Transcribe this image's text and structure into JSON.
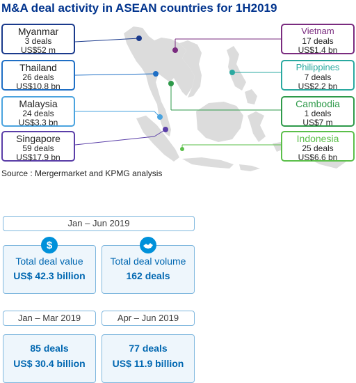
{
  "title": "M&A deal activity in ASEAN countries for 1H2019",
  "source": "Source : Mergermarket and KPMG analysis",
  "countries": [
    {
      "name": "Myanmar",
      "deals": "3 deals",
      "value": "US$52 m",
      "color": "#1a3a8c"
    },
    {
      "name": "Thailand",
      "deals": "26 deals",
      "value": "US$10.8 bn",
      "color": "#1f6fc5"
    },
    {
      "name": "Malaysia",
      "deals": "24 deals",
      "value": "US$3.3 bn",
      "color": "#4aa3df"
    },
    {
      "name": "Singapore",
      "deals": "59 deals",
      "value": "US$17.9 bn",
      "color": "#5a3ea8"
    },
    {
      "name": "Vietnam",
      "deals": "17 deals",
      "value": "US$1.4 bn",
      "color": "#7a2b7f"
    },
    {
      "name": "Philippines",
      "deals": "7 deals",
      "value": "US$2.2 bn",
      "color": "#2aa9a0"
    },
    {
      "name": "Cambodia",
      "deals": "1 deals",
      "value": "US$7 m",
      "color": "#2e9a4a"
    },
    {
      "name": "Indonesia",
      "deals": "25 deals",
      "value": "US$6.6 bn",
      "color": "#5bbf4a"
    }
  ],
  "summary": {
    "period_h1": "Jan – Jun 2019",
    "total_value_label": "Total deal value",
    "total_value": "US$ 42.3 billion",
    "total_volume_label": "Total deal volume",
    "total_volume": "162 deals",
    "period_q1": "Jan – Mar 2019",
    "period_q2": "Apr – Jun 2019",
    "q1_deals": "85 deals",
    "q1_value": "US$ 30.4 billion",
    "q2_deals": "77 deals",
    "q2_value": "US$ 11.9 billion"
  },
  "colors": {
    "title": "#00338d",
    "accent": "#0067b1",
    "box_border": "#7fb7de",
    "box_fill": "#eef6fc",
    "map": "#dcdcdc"
  },
  "icons": [
    "dollar-icon",
    "handshake-icon"
  ]
}
